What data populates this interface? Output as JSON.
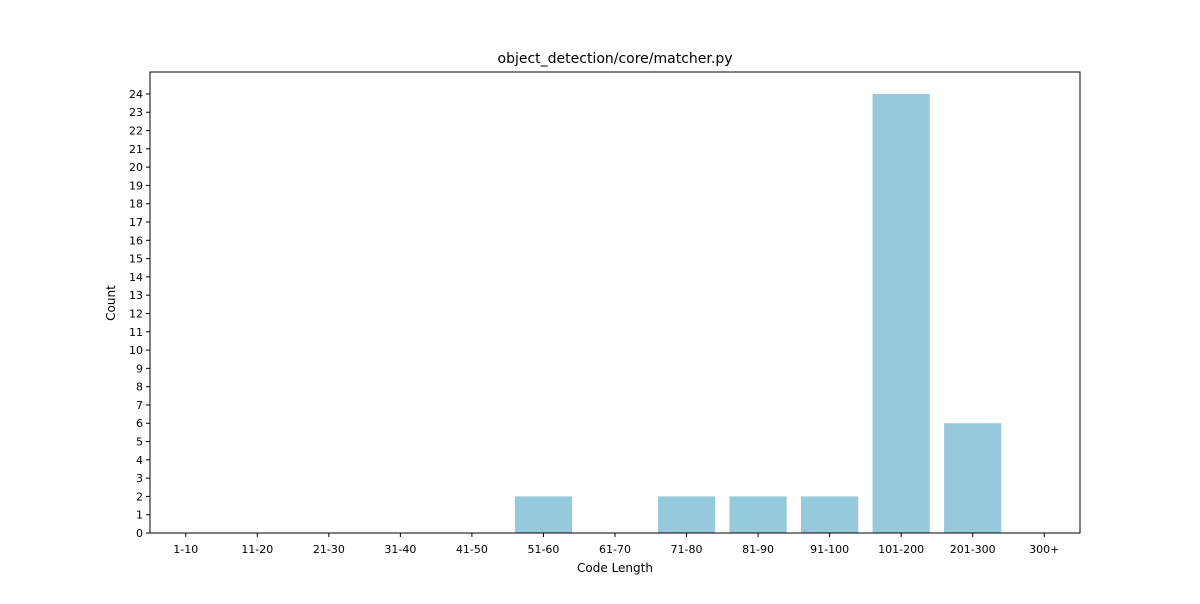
{
  "chart_data": {
    "type": "bar",
    "title": "object_detection/core/matcher.py",
    "xlabel": "Code Length",
    "ylabel": "Count",
    "categories": [
      "1-10",
      "11-20",
      "21-30",
      "31-40",
      "41-50",
      "51-60",
      "61-70",
      "71-80",
      "81-90",
      "91-100",
      "101-200",
      "201-300",
      "300+"
    ],
    "values": [
      0,
      0,
      0,
      0,
      0,
      2,
      0,
      2,
      2,
      2,
      24,
      6,
      0
    ],
    "ylim": [
      0,
      25.2
    ],
    "yticks": [
      0,
      1,
      2,
      3,
      4,
      5,
      6,
      7,
      8,
      9,
      10,
      11,
      12,
      13,
      14,
      15,
      16,
      17,
      18,
      19,
      20,
      21,
      22,
      23,
      24
    ],
    "bar_color": "#96c9dc",
    "grid": false,
    "legend": "none"
  }
}
